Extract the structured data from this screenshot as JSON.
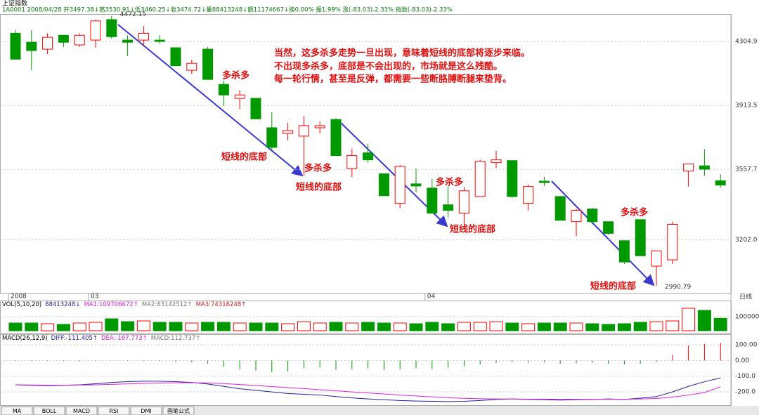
{
  "header": {
    "title": "上证指数",
    "info": "1A0001 2008/04/28 开3497.38↓高3530.91↓低3460.25↓收3474.72↓量88413248↓额11174667↓换0.00% 振1.99% 涨(-83.03)-2.33% 指数(-83.03)-2.33%",
    "period": "日线"
  },
  "tabs": [
    "MA",
    "BOLL",
    "MACD",
    "RSI",
    "DMI",
    "画笔公式"
  ],
  "chart_data": [
    {
      "type": "candlestick",
      "log_scale": true,
      "grid": true,
      "up_color": "#ff0000",
      "down_color": "#009900",
      "categories": [
        "2008",
        null,
        null,
        null,
        null,
        "03",
        null,
        null,
        null,
        null,
        null,
        null,
        null,
        null,
        null,
        null,
        null,
        null,
        null,
        null,
        null,
        null,
        null,
        null,
        null,
        null,
        "04",
        null,
        null,
        null,
        null,
        null,
        null,
        null,
        null,
        null,
        null,
        null,
        null,
        null,
        null,
        null,
        null,
        null,
        null
      ],
      "open": [
        4358,
        4300,
        4256,
        4345,
        4283,
        4314,
        4448,
        4314,
        4314,
        4314,
        4265,
        4124,
        4256,
        4038,
        3955,
        3955,
        3785,
        3753,
        3738,
        3785,
        3832,
        3562,
        3646,
        3534,
        3381,
        3481,
        3459,
        3374,
        3332,
        3416,
        3593,
        3604,
        3381,
        3495,
        3416,
        3290,
        3353,
        3290,
        3198,
        3300,
        3079,
        3108,
        3548,
        3576,
        3497.38
      ],
      "high": [
        4380,
        4380,
        4358,
        4345,
        4358,
        4448,
        4472.15,
        4345,
        4404,
        4345,
        4265,
        4189,
        4270,
        4059,
        4004,
        3955,
        3873,
        3813,
        3852,
        3822,
        3840,
        3669,
        3695,
        3534,
        3580,
        3562,
        3506,
        3470,
        3463,
        3608,
        3657,
        3604,
        3477,
        3517,
        3416,
        3353,
        3360,
        3290,
        3198,
        3300,
        3150,
        3290,
        3586,
        3665,
        3530.91
      ],
      "low": [
        4193,
        4124,
        4225,
        4270,
        4270,
        4265,
        4323,
        4211,
        4278,
        4292,
        4152,
        4102,
        4068,
        3909,
        3892,
        3836,
        3657,
        3714,
        3524,
        3753,
        3631,
        3517,
        3593,
        3420,
        3357,
        3438,
        3332,
        3311,
        3277,
        3416,
        3565,
        3409,
        3346,
        3470,
        3297,
        3219,
        3277,
        3226,
        3089,
        3127,
        2990.79,
        3089,
        3467,
        3524,
        3460.25
      ],
      "close": [
        4193,
        4247,
        4332,
        4300,
        4345,
        4439,
        4336,
        4300,
        4358,
        4305,
        4152,
        4167,
        4068,
        3975,
        3975,
        3836,
        3676,
        3769,
        3797,
        3797,
        3631,
        3631,
        3608,
        3420,
        3573,
        3470,
        3332,
        3346,
        3445,
        3600,
        3608,
        3416,
        3467,
        3488,
        3297,
        3346,
        3290,
        3233,
        3098,
        3127,
        3150,
        3277,
        3586,
        3558,
        3474.72
      ],
      "ylim": [
        2965,
        4485
      ],
      "yticks": [
        4304.9,
        3913.5,
        3557.7,
        {
          "value": 3202,
          "label": "3202.0"
        }
      ],
      "annotations": [
        "当然，这多杀多走势一旦出现，意味着短线的底部将逐步来临。",
        "不出现多杀多，底部是不会出现的，市场就是这么残酷。",
        "每一轮行情，甚至是反弹，都需要一些断胳膊断腿来垫背。",
        "多杀多",
        "多杀多",
        "多杀多",
        "多杀多",
        "短线的底部",
        "短线的底部",
        "短线的底部",
        "短线的底部"
      ]
    },
    {
      "type": "volume",
      "header": [
        "VOL(5,10,20)",
        "88413248↓",
        "MA1:109706672↑",
        "MA2:83142512↑",
        "MA3:74316248↑"
      ],
      "values": [
        55000,
        55000,
        50000,
        45000,
        55000,
        60000,
        85000,
        65000,
        70000,
        60000,
        60000,
        55000,
        60000,
        60000,
        55000,
        55000,
        55000,
        50000,
        65000,
        55000,
        60000,
        55000,
        60000,
        55000,
        55000,
        50000,
        60000,
        50000,
        60000,
        60000,
        65000,
        55000,
        50000,
        55000,
        55000,
        55000,
        50000,
        45000,
        50000,
        60000,
        65000,
        70000,
        160000,
        145000,
        88413
      ],
      "ylim": [
        0,
        205000
      ],
      "yticks": [
        100000
      ]
    },
    {
      "type": "macd",
      "header": [
        "MACD(26,12,9)",
        "DIFF:-111.405↑",
        "DEA:-167.773↑",
        "MACD:112.737↑"
      ],
      "values": [
        -3,
        -5,
        -4,
        -4,
        -6,
        -4,
        -2,
        -3,
        -4,
        -5,
        -8,
        -12,
        -20,
        -40,
        -55,
        -65,
        -75,
        -70,
        -50,
        -45,
        -60,
        -55,
        -50,
        -60,
        -55,
        -50,
        -55,
        -45,
        -35,
        -25,
        -15,
        -10,
        -15,
        -12,
        -20,
        -18,
        -15,
        -20,
        -25,
        -20,
        -10,
        35,
        95,
        105,
        112.737
      ],
      "series": [
        {
          "name": "DIFF",
          "color": "#2020a0",
          "values": [
            -155,
            -158,
            -160,
            -158,
            -155,
            -148,
            -140,
            -135,
            -132,
            -132,
            -135,
            -140,
            -150,
            -165,
            -180,
            -190,
            -200,
            -210,
            -215,
            -220,
            -230,
            -238,
            -245,
            -250,
            -255,
            -258,
            -260,
            -262,
            -260,
            -255,
            -248,
            -245,
            -248,
            -250,
            -252,
            -250,
            -248,
            -245,
            -248,
            -240,
            -230,
            -200,
            -165,
            -135,
            -111.405
          ]
        },
        {
          "name": "DEA",
          "color": "#e020e0",
          "values": [
            -155,
            -156,
            -157,
            -157,
            -156,
            -155,
            -152,
            -149,
            -146,
            -144,
            -142,
            -142,
            -143,
            -147,
            -153,
            -159,
            -166,
            -173,
            -179,
            -186,
            -193,
            -200,
            -207,
            -213,
            -220,
            -226,
            -232,
            -237,
            -241,
            -244,
            -245,
            -245,
            -246,
            -246,
            -247,
            -247,
            -247,
            -247,
            -247,
            -245,
            -242,
            -233,
            -220,
            -204,
            -167.773
          ]
        }
      ],
      "ylim": [
        -289,
        158
      ],
      "yticks": [
        {
          "value": 100,
          "label": "100.00"
        },
        {
          "value": 0,
          "label": "0.00"
        },
        {
          "value": -100,
          "label": "-100.0"
        },
        {
          "value": -200,
          "label": "-200.0"
        }
      ]
    }
  ]
}
